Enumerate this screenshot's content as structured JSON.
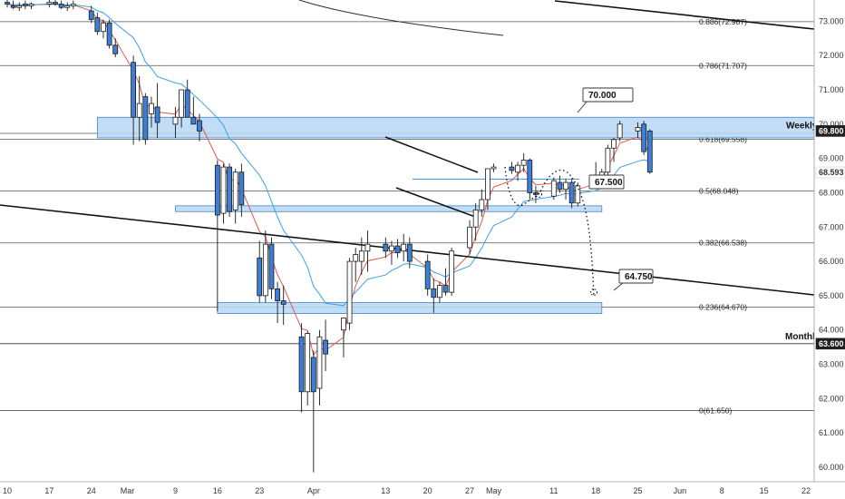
{
  "chart_data": {
    "type": "candlestick",
    "y_range": [
      59.55,
      73.38
    ],
    "x_range": [
      "2020-02-10",
      "2020-06-22"
    ],
    "price_ticks": [
      "60.000",
      "61.000",
      "62.000",
      "63.000",
      "64.000",
      "65.000",
      "66.000",
      "67.000",
      "68.000",
      "69.000",
      "70.000",
      "71.000",
      "72.000",
      "73.000"
    ],
    "date_ticks": [
      {
        "date": "2020-02-10",
        "label": "10"
      },
      {
        "date": "2020-02-17",
        "label": "17"
      },
      {
        "date": "2020-02-24",
        "label": "24"
      },
      {
        "date": "2020-03-01",
        "label": "Mar"
      },
      {
        "date": "2020-03-09",
        "label": "9"
      },
      {
        "date": "2020-03-16",
        "label": "16"
      },
      {
        "date": "2020-03-23",
        "label": "23"
      },
      {
        "date": "2020-04-01",
        "label": "Apr"
      },
      {
        "date": "2020-04-13",
        "label": "13"
      },
      {
        "date": "2020-04-20",
        "label": "20"
      },
      {
        "date": "2020-04-27",
        "label": "27"
      },
      {
        "date": "2020-05-01",
        "label": "May"
      },
      {
        "date": "2020-05-11",
        "label": "11"
      },
      {
        "date": "2020-05-18",
        "label": "18"
      },
      {
        "date": "2020-05-25",
        "label": "25"
      },
      {
        "date": "2020-06-01",
        "label": "Jun"
      },
      {
        "date": "2020-06-08",
        "label": "8"
      },
      {
        "date": "2020-06-15",
        "label": "15"
      },
      {
        "date": "2020-06-22",
        "label": "22"
      }
    ],
    "fib_levels": [
      {
        "label": "0.886(72.987)",
        "price": 72.987
      },
      {
        "label": "0.786(71.707)",
        "price": 71.707
      },
      {
        "label": "0.618(69.558)",
        "price": 69.558
      },
      {
        "label": "0.5(68.048)",
        "price": 68.048
      },
      {
        "label": "0.382(66.538)",
        "price": 66.538
      },
      {
        "label": "0.236(64.670)",
        "price": 64.67
      },
      {
        "label": "0(61.650)",
        "price": 61.65
      }
    ],
    "zones": [
      {
        "name": "weekly",
        "label": "Weekly",
        "date_from": "2020-02-25",
        "price_low": 69.6,
        "price_high": 70.2
      },
      {
        "name": "mid",
        "date_from": "2020-03-09",
        "date_to": "2020-05-19",
        "price_low": 67.45,
        "price_high": 67.62
      },
      {
        "name": "low",
        "date_from": "2020-03-16",
        "date_to": "2020-05-19",
        "price_low": 64.48,
        "price_high": 64.8
      }
    ],
    "price_tags": [
      {
        "label": "69.800",
        "price": 69.8,
        "color": "#1f1f1f"
      },
      {
        "label": "68.593",
        "price": 68.593,
        "color": "#ffffff"
      },
      {
        "label": "63.600",
        "price": 63.6,
        "color": "#1f1f1f"
      }
    ],
    "horizontal_lines": [
      {
        "label": "Monthly",
        "price": 63.6
      }
    ],
    "callouts": [
      {
        "label": "70.000",
        "price": 70.0,
        "date": "2020-05-14"
      },
      {
        "label": "67.500",
        "price": 67.5,
        "date": "2020-05-18"
      },
      {
        "label": "64.750",
        "price": 64.75,
        "date": "2020-05-21"
      }
    ],
    "candles": [
      {
        "d": "2020-02-10",
        "o": 73.55,
        "h": 73.7,
        "l": 73.4,
        "c": 73.5
      },
      {
        "d": "2020-02-11",
        "o": 73.45,
        "h": 73.6,
        "l": 73.35,
        "c": 73.4
      },
      {
        "d": "2020-02-12",
        "o": 73.4,
        "h": 73.55,
        "l": 73.3,
        "c": 73.45
      },
      {
        "d": "2020-02-13",
        "o": 73.5,
        "h": 73.6,
        "l": 73.35,
        "c": 73.45
      },
      {
        "d": "2020-02-14",
        "o": 73.45,
        "h": 73.55,
        "l": 73.35,
        "c": 73.5
      },
      {
        "d": "2020-02-17",
        "o": 73.5,
        "h": 73.65,
        "l": 73.4,
        "c": 73.55
      },
      {
        "d": "2020-02-18",
        "o": 73.55,
        "h": 73.7,
        "l": 73.45,
        "c": 73.5
      },
      {
        "d": "2020-02-19",
        "o": 73.5,
        "h": 73.6,
        "l": 73.35,
        "c": 73.4
      },
      {
        "d": "2020-02-20",
        "o": 73.4,
        "h": 73.55,
        "l": 73.3,
        "c": 73.45
      },
      {
        "d": "2020-02-21",
        "o": 73.45,
        "h": 73.6,
        "l": 73.35,
        "c": 73.5
      },
      {
        "d": "2020-02-24",
        "o": 73.3,
        "h": 73.45,
        "l": 72.95,
        "c": 73.05
      },
      {
        "d": "2020-02-25",
        "o": 73.1,
        "h": 73.25,
        "l": 72.6,
        "c": 72.7
      },
      {
        "d": "2020-02-26",
        "o": 72.7,
        "h": 73.05,
        "l": 72.5,
        "c": 72.95
      },
      {
        "d": "2020-02-27",
        "o": 72.95,
        "h": 73.05,
        "l": 72.2,
        "c": 72.3
      },
      {
        "d": "2020-02-28",
        "o": 72.3,
        "h": 72.5,
        "l": 71.95,
        "c": 72.05
      },
      {
        "d": "2020-03-02",
        "o": 71.8,
        "h": 72.0,
        "l": 69.4,
        "c": 70.2
      },
      {
        "d": "2020-03-03",
        "o": 70.2,
        "h": 71.4,
        "l": 69.5,
        "c": 70.6
      },
      {
        "d": "2020-03-04",
        "o": 70.8,
        "h": 70.9,
        "l": 69.4,
        "c": 69.55
      },
      {
        "d": "2020-03-05",
        "o": 70.3,
        "h": 70.8,
        "l": 69.9,
        "c": 70.6
      },
      {
        "d": "2020-03-06",
        "o": 70.5,
        "h": 71.2,
        "l": 69.6,
        "c": 70.05
      },
      {
        "d": "2020-03-09",
        "o": 70.0,
        "h": 70.5,
        "l": 69.6,
        "c": 70.2
      },
      {
        "d": "2020-03-10",
        "o": 70.2,
        "h": 71.0,
        "l": 69.9,
        "c": 71.0
      },
      {
        "d": "2020-03-11",
        "o": 71.0,
        "h": 71.3,
        "l": 70.2,
        "c": 70.2
      },
      {
        "d": "2020-03-12",
        "o": 70.2,
        "h": 70.8,
        "l": 70.0,
        "c": 70.0
      },
      {
        "d": "2020-03-13",
        "o": 70.1,
        "h": 70.3,
        "l": 69.5,
        "c": 69.8
      },
      {
        "d": "2020-03-16",
        "o": 68.8,
        "h": 68.95,
        "l": 64.55,
        "c": 67.35
      },
      {
        "d": "2020-03-17",
        "o": 67.4,
        "h": 68.85,
        "l": 67.1,
        "c": 68.75
      },
      {
        "d": "2020-03-18",
        "o": 68.75,
        "h": 68.85,
        "l": 67.3,
        "c": 67.45
      },
      {
        "d": "2020-03-19",
        "o": 67.5,
        "h": 68.7,
        "l": 67.1,
        "c": 68.6
      },
      {
        "d": "2020-03-20",
        "o": 68.6,
        "h": 68.85,
        "l": 67.3,
        "c": 67.65
      },
      {
        "d": "2020-03-23",
        "o": 66.1,
        "h": 66.6,
        "l": 64.8,
        "c": 65.0
      },
      {
        "d": "2020-03-24",
        "o": 65.0,
        "h": 66.9,
        "l": 64.8,
        "c": 66.5
      },
      {
        "d": "2020-03-25",
        "o": 66.5,
        "h": 66.7,
        "l": 64.9,
        "c": 65.2
      },
      {
        "d": "2020-03-26",
        "o": 65.2,
        "h": 65.4,
        "l": 64.2,
        "c": 64.85
      },
      {
        "d": "2020-03-27",
        "o": 64.85,
        "h": 65.3,
        "l": 64.15,
        "c": 64.75
      },
      {
        "d": "2020-03-30",
        "o": 63.8,
        "h": 64.2,
        "l": 61.6,
        "c": 62.2
      },
      {
        "d": "2020-03-31",
        "o": 62.2,
        "h": 63.95,
        "l": 61.8,
        "c": 63.9
      },
      {
        "d": "2020-04-01",
        "o": 63.2,
        "h": 63.4,
        "l": 59.85,
        "c": 62.2
      },
      {
        "d": "2020-04-02",
        "o": 62.3,
        "h": 64.0,
        "l": 61.8,
        "c": 63.8
      },
      {
        "d": "2020-04-03",
        "o": 63.7,
        "h": 64.3,
        "l": 62.8,
        "c": 63.3
      },
      {
        "d": "2020-04-06",
        "o": 64.0,
        "h": 64.3,
        "l": 63.2,
        "c": 64.35
      },
      {
        "d": "2020-04-07",
        "o": 64.2,
        "h": 66.1,
        "l": 64.0,
        "c": 66.0
      },
      {
        "d": "2020-04-08",
        "o": 66.0,
        "h": 66.4,
        "l": 65.4,
        "c": 66.2
      },
      {
        "d": "2020-04-09",
        "o": 66.0,
        "h": 66.7,
        "l": 65.6,
        "c": 66.3
      },
      {
        "d": "2020-04-10",
        "o": 66.3,
        "h": 66.9,
        "l": 65.7,
        "c": 66.5
      },
      {
        "d": "2020-04-13",
        "o": 66.5,
        "h": 66.7,
        "l": 66.1,
        "c": 66.3
      },
      {
        "d": "2020-04-14",
        "o": 66.3,
        "h": 66.6,
        "l": 65.9,
        "c": 66.45
      },
      {
        "d": "2020-04-15",
        "o": 66.45,
        "h": 66.65,
        "l": 66.1,
        "c": 66.25
      },
      {
        "d": "2020-04-16",
        "o": 66.3,
        "h": 66.8,
        "l": 66.0,
        "c": 66.5
      },
      {
        "d": "2020-04-17",
        "o": 66.5,
        "h": 66.7,
        "l": 65.8,
        "c": 66.0
      },
      {
        "d": "2020-04-20",
        "o": 66.0,
        "h": 66.2,
        "l": 65.0,
        "c": 65.2
      },
      {
        "d": "2020-04-21",
        "o": 65.2,
        "h": 65.5,
        "l": 64.5,
        "c": 64.95
      },
      {
        "d": "2020-04-22",
        "o": 64.95,
        "h": 65.4,
        "l": 64.8,
        "c": 65.3
      },
      {
        "d": "2020-04-23",
        "o": 65.3,
        "h": 65.8,
        "l": 65.0,
        "c": 65.1
      },
      {
        "d": "2020-04-24",
        "o": 65.1,
        "h": 66.4,
        "l": 65.0,
        "c": 66.3
      },
      {
        "d": "2020-04-27",
        "o": 66.4,
        "h": 67.2,
        "l": 66.2,
        "c": 67.0
      },
      {
        "d": "2020-04-28",
        "o": 67.0,
        "h": 67.7,
        "l": 66.6,
        "c": 67.5
      },
      {
        "d": "2020-04-29",
        "o": 67.5,
        "h": 68.1,
        "l": 67.3,
        "c": 67.8
      },
      {
        "d": "2020-04-30",
        "o": 67.8,
        "h": 68.7,
        "l": 67.5,
        "c": 68.7
      },
      {
        "d": "2020-05-01",
        "o": 68.7,
        "h": 68.85,
        "l": 68.6,
        "c": 68.75
      },
      {
        "d": "2020-05-04",
        "o": 68.75,
        "h": 68.9,
        "l": 68.55,
        "c": 68.65
      },
      {
        "d": "2020-05-05",
        "o": 68.6,
        "h": 68.9,
        "l": 68.35,
        "c": 68.8
      },
      {
        "d": "2020-05-06",
        "o": 68.8,
        "h": 69.15,
        "l": 68.6,
        "c": 68.95
      },
      {
        "d": "2020-05-07",
        "o": 68.95,
        "h": 69.0,
        "l": 67.8,
        "c": 68.0
      },
      {
        "d": "2020-05-08",
        "o": 68.0,
        "h": 68.2,
        "l": 67.7,
        "c": 67.95
      },
      {
        "d": "2020-05-11",
        "o": 67.9,
        "h": 68.45,
        "l": 67.8,
        "c": 68.35
      },
      {
        "d": "2020-05-12",
        "o": 68.3,
        "h": 68.5,
        "l": 68.0,
        "c": 68.1
      },
      {
        "d": "2020-05-13",
        "o": 68.1,
        "h": 68.4,
        "l": 67.8,
        "c": 68.3
      },
      {
        "d": "2020-05-14",
        "o": 68.3,
        "h": 68.4,
        "l": 67.55,
        "c": 67.7
      },
      {
        "d": "2020-05-15",
        "o": 67.7,
        "h": 68.3,
        "l": 67.6,
        "c": 68.2
      },
      {
        "d": "2020-05-18",
        "o": 68.2,
        "h": 68.9,
        "l": 68.1,
        "c": 68.5
      },
      {
        "d": "2020-05-19",
        "o": 68.5,
        "h": 68.7,
        "l": 68.3,
        "c": 68.6
      },
      {
        "d": "2020-05-20",
        "o": 68.6,
        "h": 69.4,
        "l": 68.5,
        "c": 69.3
      },
      {
        "d": "2020-05-21",
        "o": 69.3,
        "h": 69.6,
        "l": 68.9,
        "c": 69.55
      },
      {
        "d": "2020-05-22",
        "o": 69.6,
        "h": 70.1,
        "l": 69.5,
        "c": 70.0
      },
      {
        "d": "2020-05-25",
        "o": 69.8,
        "h": 70.05,
        "l": 69.6,
        "c": 69.9
      },
      {
        "d": "2020-05-26",
        "o": 70.0,
        "h": 70.1,
        "l": 69.1,
        "c": 69.2
      },
      {
        "d": "2020-05-27",
        "o": 69.8,
        "h": 69.85,
        "l": 68.55,
        "c": 68.6
      }
    ]
  }
}
